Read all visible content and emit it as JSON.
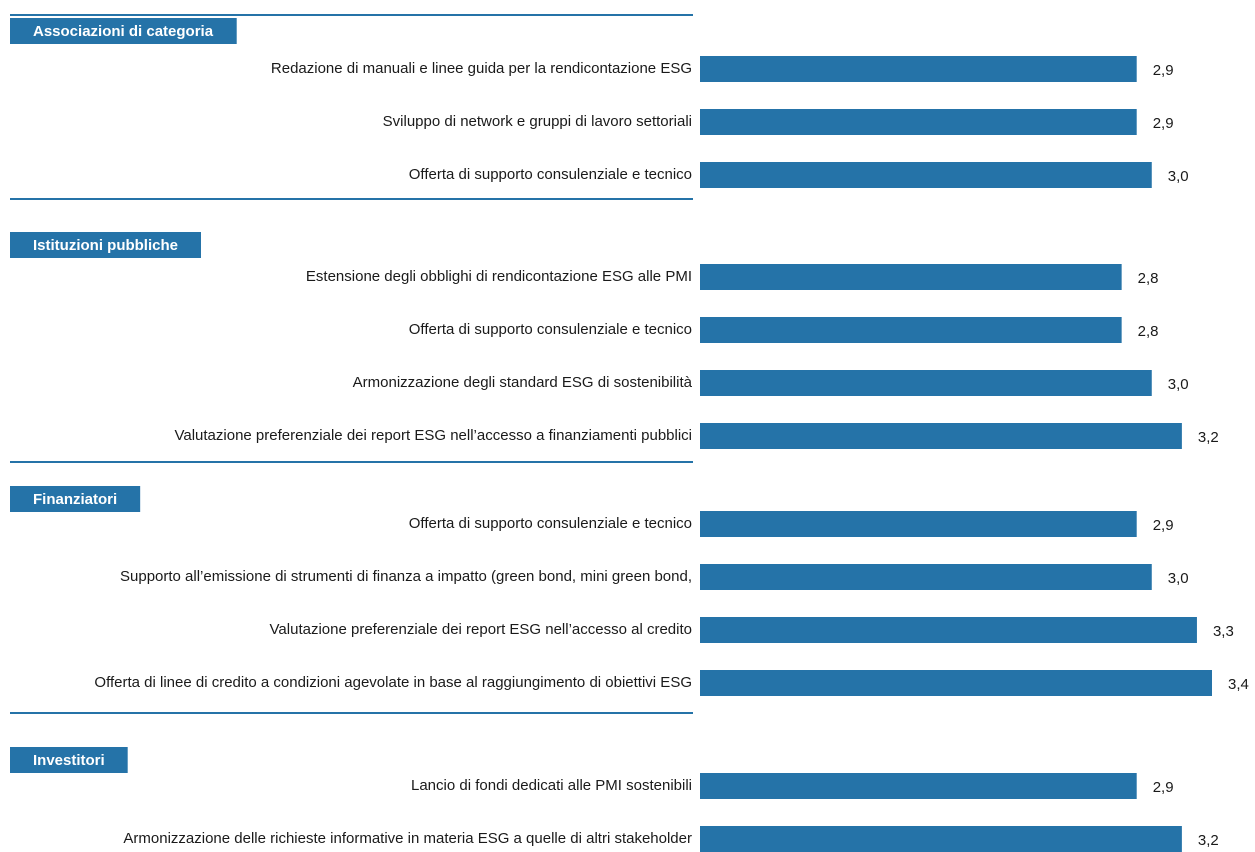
{
  "chart_data": {
    "type": "bar",
    "color": "#2573a8",
    "header_color": "#2573a8",
    "groups": [
      {
        "name": "Associazioni di categoria",
        "categories": [
          "Redazione di manuali e linee guida per la rendicontazione ESG",
          "Sviluppo di network e gruppi di lavoro settoriali",
          "Offerta di supporto consulenziale e tecnico"
        ],
        "values": [
          2.9,
          2.9,
          3.0
        ],
        "value_labels": [
          "2,9",
          "2,9",
          "3,0"
        ]
      },
      {
        "name": "Istituzioni pubbliche",
        "categories": [
          "Estensione degli obblighi di rendicontazione ESG alle PMI",
          "Offerta di supporto consulenziale e tecnico",
          "Armonizzazione degli standard ESG di sostenibilità",
          "Valutazione preferenziale dei report ESG nell’accesso a finanziamenti pubblici"
        ],
        "values": [
          2.8,
          2.8,
          3.0,
          3.2
        ],
        "value_labels": [
          "2,8",
          "2,8",
          "3,0",
          "3,2"
        ]
      },
      {
        "name": "Finanziatori",
        "categories": [
          "Offerta di supporto consulenziale e tecnico",
          "Supporto all’emissione di strumenti di finanza a impatto (green bond, mini green bond,",
          "Valutazione preferenziale dei report ESG nell’accesso al credito",
          "Offerta di linee di credito a condizioni agevolate in base al raggiungimento di obiettivi ESG"
        ],
        "values": [
          2.9,
          3.0,
          3.3,
          3.4
        ],
        "value_labels": [
          "2,9",
          "3,0",
          "3,3",
          "3,4"
        ]
      },
      {
        "name": "Investitori",
        "categories": [
          "Lancio di fondi dedicati alle PMI sostenibili",
          "Armonizzazione delle richieste informative in materia ESG a quelle di altri stakeholder"
        ],
        "values": [
          2.9,
          3.2
        ],
        "value_labels": [
          "2,9",
          "3,2"
        ]
      }
    ]
  }
}
